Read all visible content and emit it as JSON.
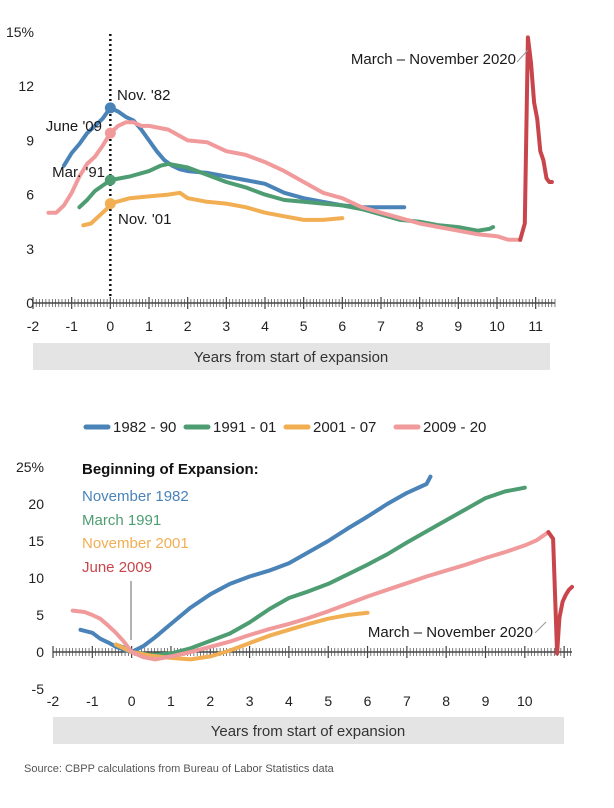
{
  "colors": {
    "c1982": "#4a83b8",
    "c1991": "#4e9d72",
    "c2001": "#f2ae52",
    "c2009": "#f19a9b",
    "covid": "#c8464b",
    "axisbar": "#e4e4e4"
  },
  "legend": [
    {
      "label": "1982 - 90",
      "color": "#4a83b8"
    },
    {
      "label": "1991 - 01",
      "color": "#4e9d72"
    },
    {
      "label": "2001 - 07",
      "color": "#f2ae52"
    },
    {
      "label": "2009 - 20",
      "color": "#f19a9b"
    }
  ],
  "source": "Source: CBPP calculations from Bureau of Labor Statistics data",
  "chart_data": [
    {
      "type": "line",
      "xlabel": "Years from start of expansion",
      "ylabel": "",
      "xlim": [
        -2,
        11.5
      ],
      "ylim": [
        0,
        15
      ],
      "x_ticks": [
        -2,
        -1,
        0,
        1,
        2,
        3,
        4,
        5,
        6,
        7,
        8,
        9,
        10,
        11
      ],
      "y_ticks": [
        "0",
        "3",
        "6",
        "9",
        "12",
        "15%"
      ],
      "annotations": {
        "nov82": "Nov. '82",
        "june09": "June '09",
        "mar91": "Mar. '91",
        "nov01": "Nov. '01",
        "covid": "March – November 2020"
      },
      "markers": [
        {
          "x": 0,
          "y": 10.8,
          "series": "1982 - 90"
        },
        {
          "x": 0,
          "y": 9.4,
          "series": "2009 - 20"
        },
        {
          "x": 0,
          "y": 6.8,
          "series": "1991 - 01"
        },
        {
          "x": 0,
          "y": 5.5,
          "series": "2001 - 07"
        }
      ],
      "series": [
        {
          "name": "1982 - 90",
          "x": [
            -1.2,
            -1.0,
            -0.8,
            -0.6,
            -0.4,
            -0.2,
            0,
            0.2,
            0.4,
            0.6,
            0.8,
            1.0,
            1.2,
            1.4,
            1.6,
            1.8,
            2.0,
            2.5,
            3.0,
            3.5,
            4.0,
            4.5,
            5.0,
            5.5,
            6.0,
            6.5,
            7.0,
            7.4,
            7.6
          ],
          "y": [
            7.6,
            8.3,
            8.8,
            9.4,
            9.8,
            10.2,
            10.8,
            10.6,
            10.3,
            10.1,
            9.6,
            9.0,
            8.4,
            7.9,
            7.6,
            7.4,
            7.3,
            7.2,
            7.0,
            6.8,
            6.6,
            6.1,
            5.8,
            5.6,
            5.4,
            5.3,
            5.3,
            5.3,
            5.3
          ]
        },
        {
          "name": "1991 - 01",
          "x": [
            -0.8,
            -0.6,
            -0.4,
            -0.2,
            0,
            0.5,
            1.0,
            1.3,
            1.5,
            2.0,
            2.5,
            3.0,
            3.5,
            4.0,
            4.5,
            5.0,
            5.5,
            6.0,
            6.5,
            7.0,
            7.5,
            8.0,
            8.5,
            9.0,
            9.5,
            9.8,
            9.9
          ],
          "y": [
            5.3,
            5.7,
            6.2,
            6.5,
            6.8,
            7.0,
            7.3,
            7.6,
            7.7,
            7.5,
            7.1,
            6.7,
            6.4,
            6.0,
            5.7,
            5.6,
            5.5,
            5.4,
            5.2,
            4.9,
            4.6,
            4.5,
            4.3,
            4.2,
            4.0,
            4.1,
            4.2
          ]
        },
        {
          "name": "2001 - 07",
          "x": [
            -0.7,
            -0.5,
            -0.3,
            -0.1,
            0,
            0.5,
            1.0,
            1.5,
            1.8,
            2.0,
            2.5,
            3.0,
            3.5,
            4.0,
            4.5,
            5.0,
            5.5,
            6.0
          ],
          "y": [
            4.3,
            4.4,
            4.8,
            5.2,
            5.5,
            5.8,
            5.9,
            6.0,
            6.1,
            5.8,
            5.6,
            5.5,
            5.3,
            5.0,
            4.8,
            4.6,
            4.6,
            4.7
          ]
        },
        {
          "name": "2009 - 20",
          "x": [
            -1.6,
            -1.4,
            -1.2,
            -1.0,
            -0.8,
            -0.6,
            -0.4,
            -0.2,
            0,
            0.2,
            0.4,
            0.6,
            0.8,
            1.0,
            1.5,
            2.0,
            2.5,
            3.0,
            3.5,
            4.0,
            4.5,
            5.0,
            5.5,
            6.0,
            6.5,
            7.0,
            7.5,
            8.0,
            8.5,
            9.0,
            9.5,
            10.0,
            10.3,
            10.6
          ],
          "y": [
            5.0,
            5.0,
            5.4,
            6.1,
            7.0,
            7.7,
            8.1,
            8.7,
            9.4,
            9.8,
            10.0,
            10.0,
            9.8,
            9.8,
            9.6,
            9.0,
            8.9,
            8.4,
            8.2,
            7.8,
            7.3,
            6.7,
            6.1,
            5.8,
            5.3,
            5.0,
            4.7,
            4.4,
            4.2,
            4.0,
            3.8,
            3.7,
            3.5,
            3.5
          ]
        },
        {
          "name": "March – November 2020",
          "x": [
            10.6,
            10.72,
            10.8,
            10.88,
            10.96,
            11.04,
            11.12,
            11.2,
            11.28,
            11.35,
            11.42
          ],
          "y": [
            3.5,
            4.4,
            14.7,
            13.3,
            11.1,
            10.2,
            8.4,
            7.9,
            6.9,
            6.7,
            6.7
          ]
        }
      ]
    },
    {
      "type": "line",
      "xlabel": "Years from start of expansion",
      "ylabel": "",
      "xlim": [
        -2,
        11.2
      ],
      "ylim": [
        -5,
        25
      ],
      "x_ticks": [
        -2,
        -1,
        0,
        1,
        2,
        3,
        4,
        5,
        6,
        7,
        8,
        9,
        10
      ],
      "y_ticks": [
        "-5",
        "0",
        "5",
        "10",
        "15",
        "20",
        "25%"
      ],
      "beginning_title": "Beginning of Expansion:",
      "beginning_items": [
        {
          "label": "November 1982",
          "color": "#4a83b8"
        },
        {
          "label": "March 1991",
          "color": "#4e9d72"
        },
        {
          "label": "November 2001",
          "color": "#f2ae52"
        },
        {
          "label": "June 2009",
          "color": "#c8464b"
        }
      ],
      "covid_label": "March – November 2020",
      "series": [
        {
          "name": "1982 - 90",
          "x": [
            -1.3,
            -1.0,
            -0.8,
            -0.6,
            -0.4,
            -0.2,
            0,
            0.3,
            0.6,
            1.0,
            1.5,
            2.0,
            2.5,
            3.0,
            3.5,
            4.0,
            4.5,
            5.0,
            5.5,
            6.0,
            6.5,
            7.0,
            7.5,
            7.6
          ],
          "y": [
            3.0,
            2.6,
            1.8,
            1.3,
            0.7,
            0.3,
            0.0,
            0.8,
            2.0,
            3.8,
            6.0,
            7.8,
            9.2,
            10.2,
            11.0,
            12.0,
            13.5,
            15.0,
            16.7,
            18.3,
            20.0,
            21.5,
            22.7,
            23.7
          ]
        },
        {
          "name": "1991 - 01",
          "x": [
            -0.4,
            -0.2,
            0,
            0.5,
            1.0,
            1.5,
            2.0,
            2.5,
            3.0,
            3.5,
            4.0,
            4.5,
            5.0,
            5.5,
            6.0,
            6.5,
            7.0,
            7.5,
            8.0,
            8.5,
            9.0,
            9.5,
            9.8,
            10.0
          ],
          "y": [
            1.0,
            0.6,
            0.0,
            -0.4,
            -0.2,
            0.5,
            1.5,
            2.5,
            4.0,
            5.8,
            7.3,
            8.2,
            9.2,
            10.5,
            11.8,
            13.2,
            14.8,
            16.3,
            17.8,
            19.3,
            20.8,
            21.7,
            22.0,
            22.2
          ]
        },
        {
          "name": "2001 - 07",
          "x": [
            -0.4,
            -0.2,
            0,
            0.5,
            1.0,
            1.5,
            2.0,
            2.5,
            3.0,
            3.5,
            4.0,
            4.5,
            5.0,
            5.5,
            6.0
          ],
          "y": [
            1.0,
            0.5,
            0.0,
            -0.5,
            -0.8,
            -1.0,
            -0.6,
            0.2,
            1.2,
            2.2,
            3.0,
            3.8,
            4.5,
            5.0,
            5.3
          ]
        },
        {
          "name": "2009 - 20",
          "x": [
            -1.5,
            -1.2,
            -1.0,
            -0.8,
            -0.6,
            -0.4,
            -0.2,
            0,
            0.3,
            0.6,
            1.0,
            1.5,
            2.0,
            2.5,
            3.0,
            3.5,
            4.0,
            4.5,
            5.0,
            5.5,
            6.0,
            6.5,
            7.0,
            7.5,
            8.0,
            8.5,
            9.0,
            9.5,
            10.0,
            10.3,
            10.6
          ],
          "y": [
            5.6,
            5.4,
            5.0,
            4.5,
            3.6,
            2.6,
            1.4,
            0.0,
            -0.7,
            -1.0,
            -0.6,
            0.0,
            0.7,
            1.4,
            2.3,
            3.1,
            3.8,
            4.6,
            5.5,
            6.5,
            7.5,
            8.4,
            9.3,
            10.2,
            11.0,
            11.8,
            12.7,
            13.5,
            14.4,
            15.1,
            16.2
          ]
        },
        {
          "name": "March – November 2020",
          "x": [
            10.6,
            10.72,
            10.82,
            10.88,
            10.96,
            11.04,
            11.12,
            11.2
          ],
          "y": [
            16.2,
            15.3,
            -0.2,
            4.6,
            6.8,
            7.7,
            8.4,
            8.8
          ]
        }
      ]
    }
  ]
}
